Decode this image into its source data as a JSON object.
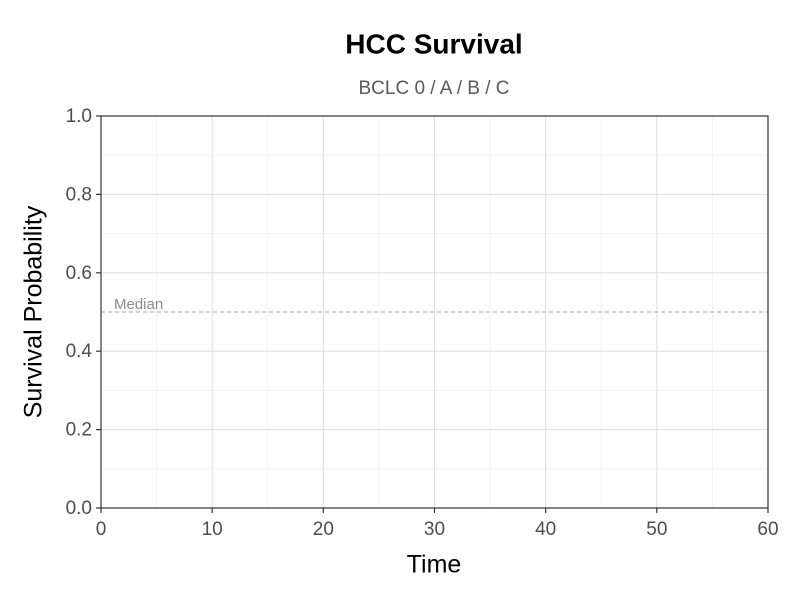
{
  "chart_data": {
    "type": "line",
    "title": "HCC Survival",
    "subtitle": "BCLC 0 / A / B / C",
    "x_label": "Time",
    "y_label": "Survival Probability",
    "series": [],
    "xlim": [
      0,
      60
    ],
    "xticks": [
      0,
      10,
      20,
      30,
      40,
      50,
      60
    ],
    "ylim": [
      0,
      1
    ],
    "yticks": [
      {
        "value": 0,
        "label": "0.0"
      },
      0.2,
      0.4,
      0.6,
      0.8,
      {
        "value": 1,
        "label": "1.0"
      }
    ],
    "grid": true,
    "annotation": {
      "text": "Median",
      "y": 0.5
    }
  }
}
